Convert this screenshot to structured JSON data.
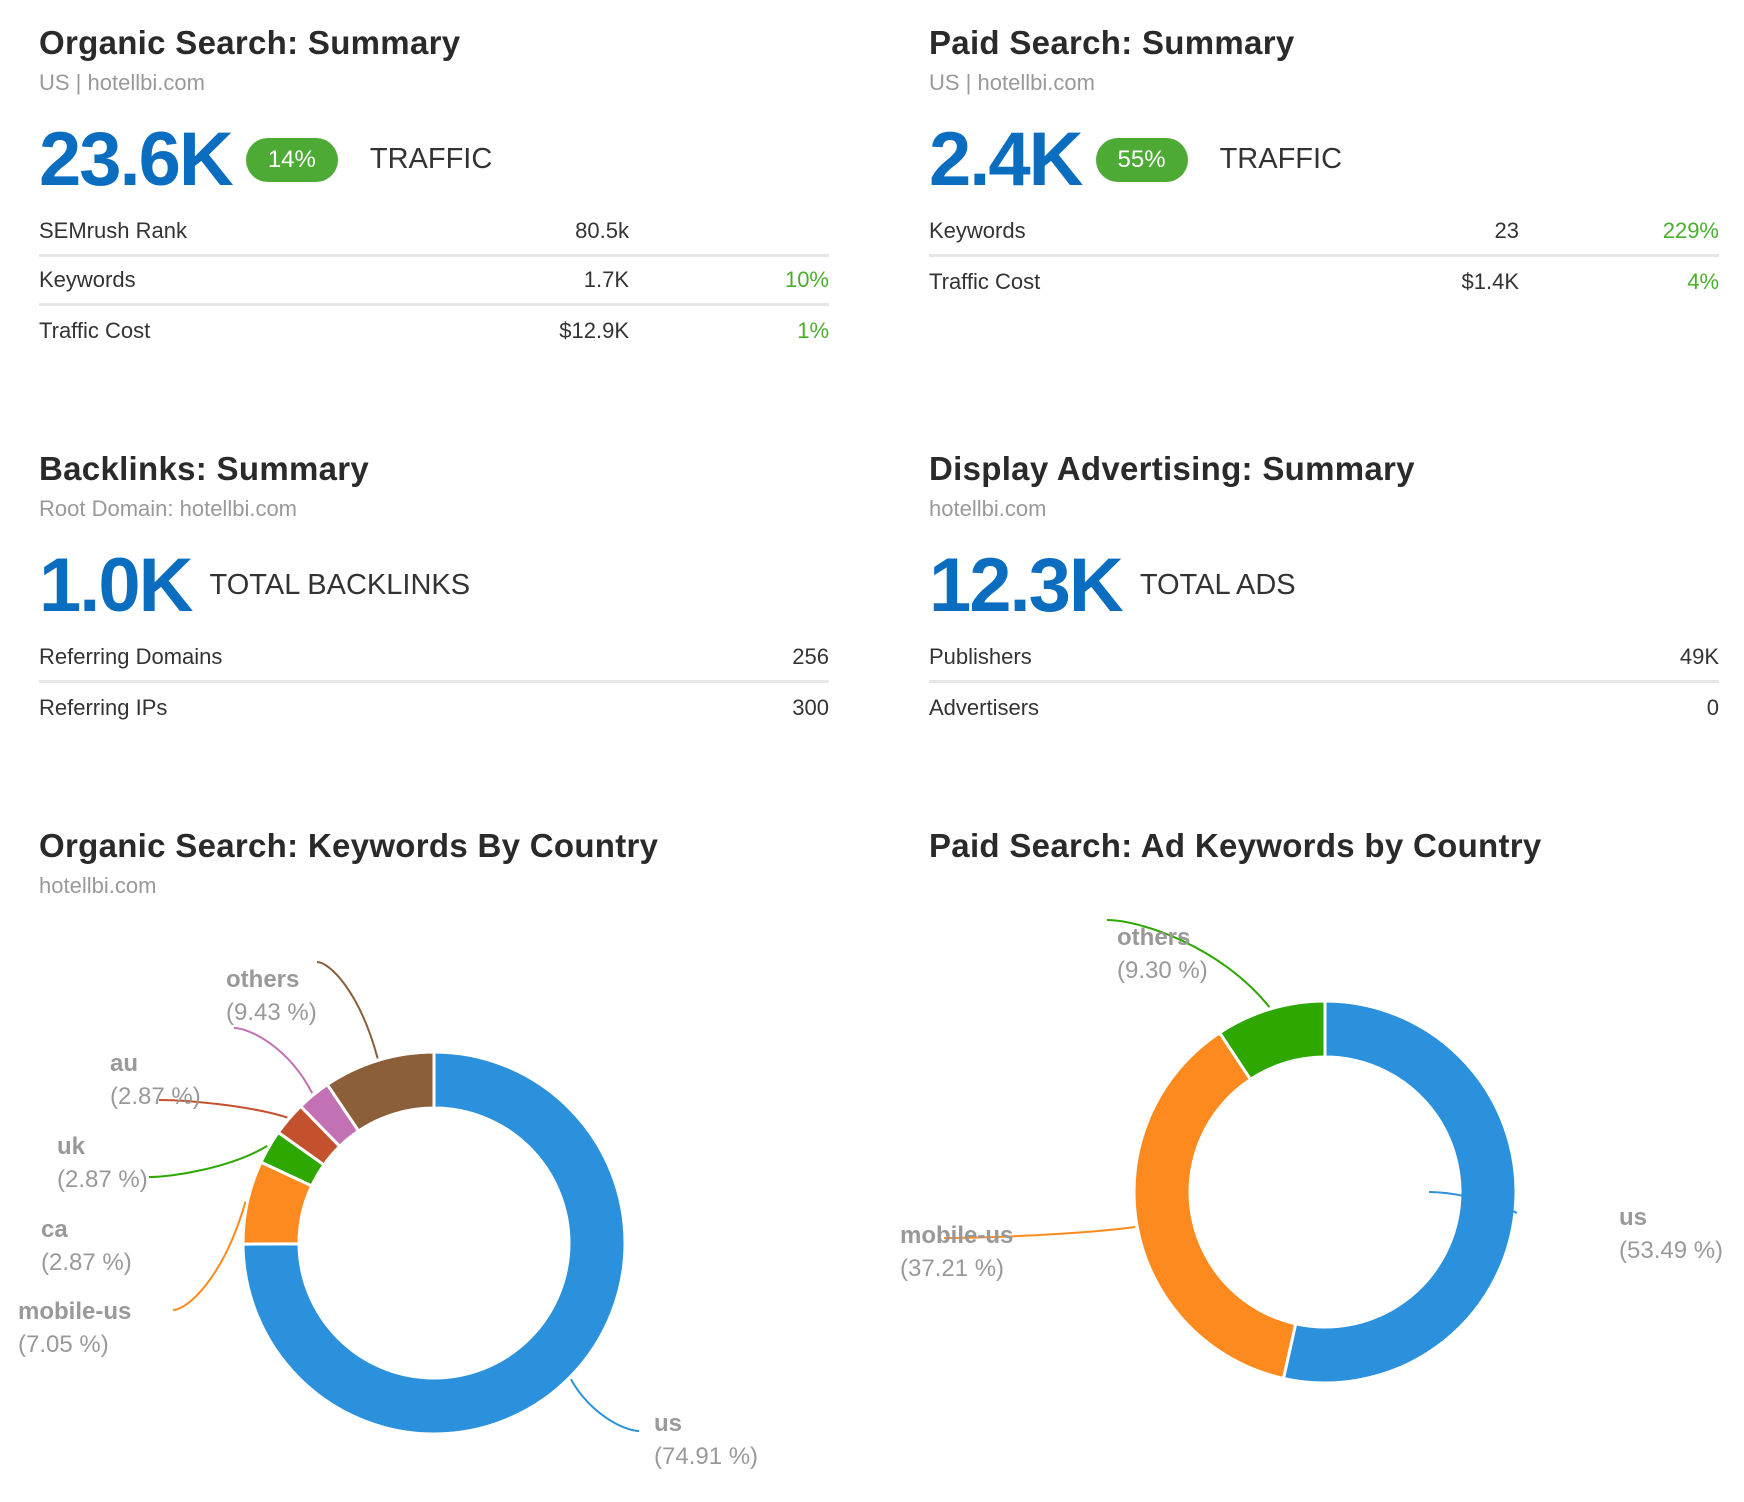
{
  "organic_summary": {
    "title": "Organic Search: Summary",
    "subtitle": "US | hotellbi.com",
    "value": "23.6K",
    "badge": "14%",
    "label": "TRAFFIC",
    "rows": [
      {
        "label": "SEMrush Rank",
        "value": "80.5k",
        "change": ""
      },
      {
        "label": "Keywords",
        "value": "1.7K",
        "change": "10%"
      },
      {
        "label": "Traffic Cost",
        "value": "$12.9K",
        "change": "1%"
      }
    ]
  },
  "paid_summary": {
    "title": "Paid Search: Summary",
    "subtitle": "US | hotellbi.com",
    "value": "2.4K",
    "badge": "55%",
    "label": "TRAFFIC",
    "rows": [
      {
        "label": "Keywords",
        "value": "23",
        "change": "229%"
      },
      {
        "label": "Traffic Cost",
        "value": "$1.4K",
        "change": "4%"
      }
    ]
  },
  "backlinks_summary": {
    "title": "Backlinks: Summary",
    "subtitle": "Root Domain: hotellbi.com",
    "value": "1.0K",
    "label": "TOTAL BACKLINKS",
    "rows": [
      {
        "label": "Referring Domains",
        "value": "256"
      },
      {
        "label": "Referring IPs",
        "value": "300"
      }
    ]
  },
  "display_summary": {
    "title": "Display Advertising: Summary",
    "subtitle": "hotellbi.com",
    "value": "12.3K",
    "label": "TOTAL ADS",
    "rows": [
      {
        "label": "Publishers",
        "value": "49K"
      },
      {
        "label": "Advertisers",
        "value": "0"
      }
    ]
  },
  "organic_country": {
    "title": "Organic Search: Keywords By Country",
    "subtitle": "hotellbi.com"
  },
  "paid_country": {
    "title": "Paid Search: Ad Keywords by Country"
  },
  "chart_data": [
    {
      "type": "pie",
      "title": "Organic Search: Keywords By Country",
      "donut": true,
      "categories": [
        "us",
        "mobile-us",
        "ca",
        "uk",
        "au",
        "others"
      ],
      "values": [
        74.91,
        7.05,
        2.87,
        2.87,
        2.87,
        9.43
      ],
      "labels": [
        "(74.91 %)",
        "(7.05 %)",
        "(2.87 %)",
        "(2.87 %)",
        "(2.87 %)",
        "(9.43 %)"
      ],
      "colors": [
        "#2b91dd",
        "#fd8a1e",
        "#2ea800",
        "#c4512d",
        "#c272b4",
        "#8a5f3a"
      ]
    },
    {
      "type": "pie",
      "title": "Paid Search: Ad Keywords by Country",
      "donut": true,
      "categories": [
        "us",
        "mobile-us",
        "others"
      ],
      "values": [
        53.49,
        37.21,
        9.3
      ],
      "labels": [
        "(53.49 %)",
        "(37.21 %)",
        "(9.30 %)"
      ],
      "colors": [
        "#2b91dd",
        "#fd8a1e",
        "#2ea800"
      ]
    }
  ]
}
